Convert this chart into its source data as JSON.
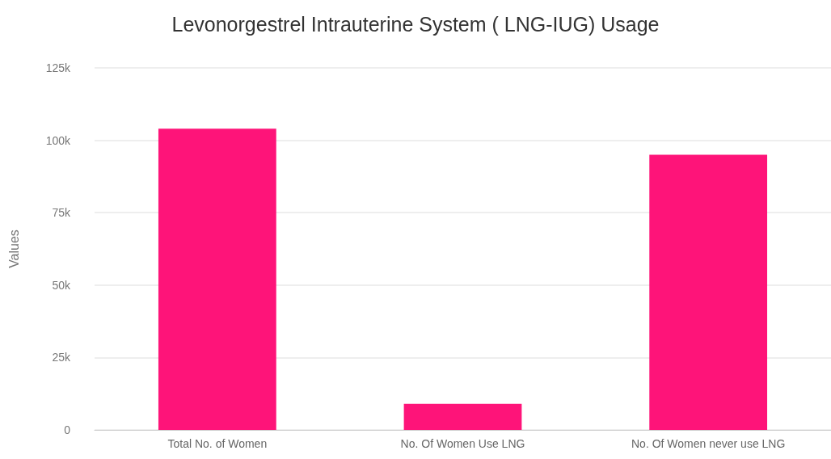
{
  "chart_data": {
    "type": "bar",
    "title": "Levonorgestrel Intrauterine System ( LNG-IUG) Usage",
    "ylabel": "Values",
    "categories": [
      "Total No. of Women",
      "No. Of Women Use LNG",
      "No. Of Women never use LNG"
    ],
    "values": [
      104000,
      9000,
      95000
    ],
    "color": "#fe1479",
    "ylim": [
      0,
      125000
    ],
    "yticks": [
      {
        "value": 0,
        "label": "0"
      },
      {
        "value": 25000,
        "label": "25k"
      },
      {
        "value": 50000,
        "label": "50k"
      },
      {
        "value": 75000,
        "label": "75k"
      },
      {
        "value": 100000,
        "label": "100k"
      },
      {
        "value": 125000,
        "label": "125k"
      }
    ],
    "grid": "y"
  }
}
